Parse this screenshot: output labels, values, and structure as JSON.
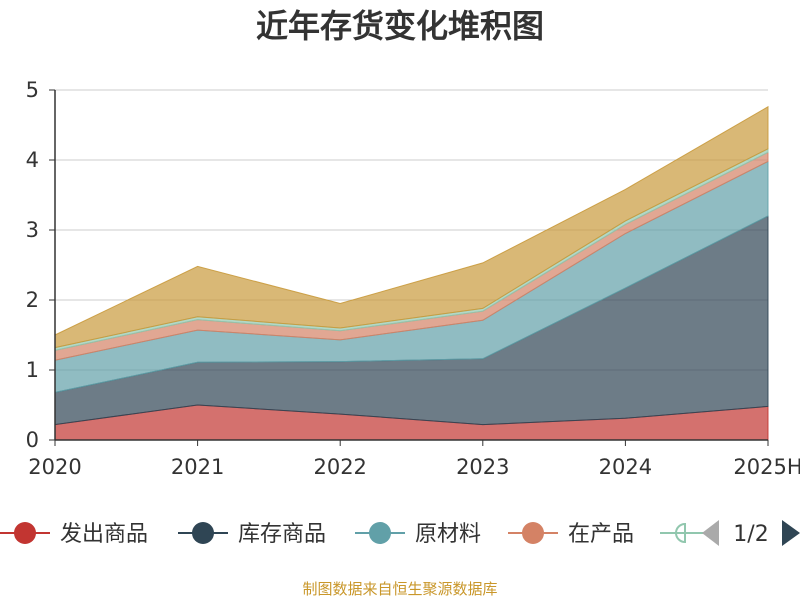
{
  "chart_data": {
    "type": "area",
    "stacked": true,
    "title": "近年存货变化堆积图",
    "x": [
      "2020",
      "2021",
      "2022",
      "2023",
      "2024",
      "2025H"
    ],
    "ylim": [
      0,
      5
    ],
    "yticks": [
      "0",
      "1",
      "2",
      "3",
      "4",
      "5"
    ],
    "grid": true,
    "legend_position": "bottom",
    "series": [
      {
        "name": "发出商品",
        "color": "#c23531",
        "values": [
          0.22,
          0.5,
          0.37,
          0.22,
          0.31,
          0.48
        ]
      },
      {
        "name": "库存商品",
        "color": "#2f4554",
        "values": [
          0.46,
          0.61,
          0.75,
          0.94,
          1.86,
          2.72
        ]
      },
      {
        "name": "原材料",
        "color": "#61a0a8",
        "values": [
          0.46,
          0.46,
          0.31,
          0.55,
          0.78,
          0.78
        ]
      },
      {
        "name": "在产品",
        "color": "#d48265",
        "values": [
          0.14,
          0.15,
          0.13,
          0.13,
          0.13,
          0.13
        ]
      },
      {
        "name": "",
        "color": "#91c7ae",
        "values": [
          0.04,
          0.04,
          0.04,
          0.04,
          0.05,
          0.05
        ]
      },
      {
        "name": "",
        "color": "#c99a3c",
        "values": [
          0.18,
          0.72,
          0.35,
          0.65,
          0.45,
          0.6
        ]
      }
    ]
  },
  "legend": {
    "visible_items": [
      {
        "label": "发出商品",
        "color": "#c23531"
      },
      {
        "label": "库存商品",
        "color": "#2f4554"
      },
      {
        "label": "原材料",
        "color": "#61a0a8"
      },
      {
        "label": "在产品",
        "color": "#d48265"
      },
      {
        "label": "",
        "color": "#91c7ae"
      }
    ],
    "pager_text": "1/2",
    "prev_icon": "triangle-left-icon",
    "next_icon": "triangle-right-icon"
  },
  "footer": {
    "source": "制图数据来自恒生聚源数据库"
  }
}
